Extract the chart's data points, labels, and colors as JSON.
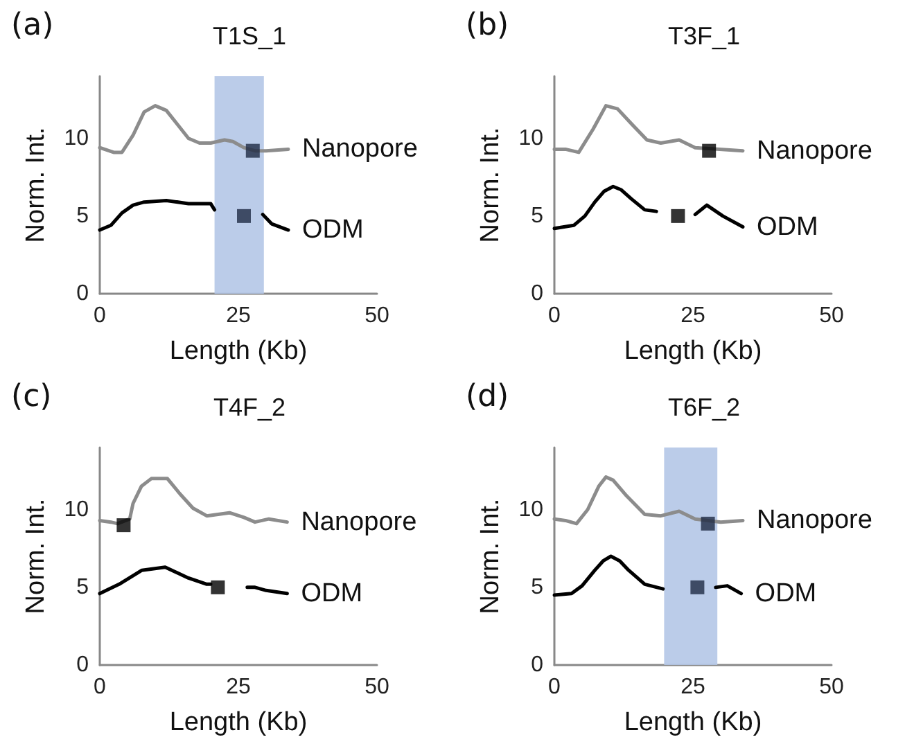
{
  "chart_data": [
    {
      "type": "line",
      "title": "T1S_1",
      "xlabel": "Length (Kb)",
      "ylabel": "Norm. Int.",
      "annotations": [
        "(a)"
      ],
      "xlim": [
        0,
        50
      ],
      "xticks": [
        0,
        25,
        50
      ],
      "ylim": [
        0,
        14
      ],
      "yticks": [
        0,
        5,
        10
      ],
      "bands": [
        {
          "axis": "x",
          "from": 20.7,
          "to": 29.6,
          "color": "#b4c7e7"
        }
      ],
      "series": [
        {
          "name": "Nanopore",
          "color": "#8c8c8c",
          "x": [
            0,
            2.5,
            4,
            6,
            8,
            10,
            12,
            14,
            16,
            18,
            20,
            22.5,
            24,
            26,
            28,
            30,
            34
          ],
          "values": [
            9.4,
            9.1,
            9.1,
            10.2,
            11.7,
            12.1,
            11.8,
            10.9,
            10.0,
            9.7,
            9.7,
            9.9,
            9.8,
            9.4,
            9.2,
            9.2,
            9.3
          ]
        },
        {
          "name": "ODM",
          "color": "#000000",
          "x": [
            0,
            2,
            4,
            6,
            8,
            12,
            16,
            20,
            20.7,
            25,
            29.4,
            31,
            34
          ],
          "values": [
            4.1,
            4.4,
            5.2,
            5.7,
            5.9,
            6.0,
            5.8,
            5.8,
            5.4,
            null,
            5.1,
            4.5,
            4.1
          ]
        },
        {
          "type": "scatter",
          "marker": "square",
          "color": "#1f2a44",
          "x": [
            27.6,
            26.0
          ],
          "values": [
            9.2,
            5.0
          ]
        }
      ]
    },
    {
      "type": "line",
      "title": "T3F_1",
      "xlabel": "Length (Kb)",
      "ylabel": "Norm. Int.",
      "annotations": [
        "(b)"
      ],
      "xlim": [
        0,
        50
      ],
      "xticks": [
        0,
        25,
        50
      ],
      "ylim": [
        0,
        14
      ],
      "yticks": [
        0,
        5,
        10
      ],
      "series": [
        {
          "name": "Nanopore",
          "color": "#8c8c8c",
          "x": [
            0,
            2,
            4.4,
            7,
            9.3,
            11.4,
            14,
            16.7,
            19.2,
            22.5,
            25.4,
            34
          ],
          "values": [
            9.3,
            9.3,
            9.1,
            10.6,
            12.1,
            11.9,
            10.9,
            9.9,
            9.7,
            9.9,
            9.4,
            9.2
          ]
        },
        {
          "name": "ODM",
          "color": "#000000",
          "x": [
            0,
            3.5,
            5.5,
            7.3,
            9,
            10.6,
            12,
            13.9,
            16.3,
            18.4,
            22,
            25.4,
            27.5,
            30.4,
            34
          ],
          "values": [
            4.2,
            4.4,
            5.0,
            5.9,
            6.6,
            6.9,
            6.7,
            6.1,
            5.4,
            5.3,
            null,
            5.1,
            5.7,
            5.0,
            4.3
          ]
        },
        {
          "type": "scatter",
          "marker": "square",
          "color": "#000000",
          "x": [
            27.9,
            22.3
          ],
          "values": [
            9.2,
            5.0
          ]
        }
      ]
    },
    {
      "type": "line",
      "title": "T4F_2",
      "xlabel": "Length (Kb)",
      "ylabel": "Norm. Int.",
      "annotations": [
        "(c)"
      ],
      "xlim": [
        0,
        50
      ],
      "xticks": [
        0,
        25,
        50
      ],
      "ylim": [
        0,
        14
      ],
      "yticks": [
        0,
        5,
        10
      ],
      "series": [
        {
          "name": "Nanopore",
          "color": "#8c8c8c",
          "x": [
            0,
            2,
            3.2,
            5.4,
            6,
            7.5,
            9.3,
            12.2,
            14.5,
            16.8,
            19.3,
            23.4,
            26,
            28,
            30.5,
            33.8
          ],
          "values": [
            9.3,
            9.2,
            9.1,
            9.4,
            10.4,
            11.5,
            12.0,
            12.0,
            11.0,
            10.1,
            9.6,
            9.8,
            9.5,
            9.2,
            9.4,
            9.2
          ]
        },
        {
          "name": "ODM",
          "color": "#000000",
          "x": [
            0,
            3.5,
            7.6,
            11.8,
            16,
            19.3,
            20,
            23,
            26.6,
            28,
            30,
            33.8
          ],
          "values": [
            4.6,
            5.2,
            6.1,
            6.3,
            5.6,
            5.2,
            5.2,
            null,
            5.0,
            5.0,
            4.8,
            4.6
          ]
        },
        {
          "type": "scatter",
          "marker": "square",
          "color": "#000000",
          "x": [
            4.3,
            21.3
          ],
          "values": [
            9.0,
            5.0
          ]
        }
      ]
    },
    {
      "type": "line",
      "title": "T6F_2",
      "xlabel": "Length (Kb)",
      "ylabel": "Norm. Int.",
      "annotations": [
        "(d)"
      ],
      "xlim": [
        0,
        50
      ],
      "xticks": [
        0,
        25,
        50
      ],
      "ylim": [
        0,
        14
      ],
      "yticks": [
        0,
        5,
        10
      ],
      "bands": [
        {
          "axis": "x",
          "from": 19.8,
          "to": 29.4,
          "color": "#b4c7e7"
        }
      ],
      "series": [
        {
          "name": "Nanopore",
          "color": "#8c8c8c",
          "x": [
            0,
            2,
            4,
            6,
            8,
            9.3,
            10.6,
            13,
            16.3,
            19.2,
            22.5,
            25.4,
            30,
            34
          ],
          "values": [
            9.4,
            9.3,
            9.1,
            10.0,
            11.5,
            12.1,
            11.9,
            10.9,
            9.7,
            9.6,
            9.9,
            9.4,
            9.2,
            9.3
          ]
        },
        {
          "name": "ODM",
          "color": "#000000",
          "x": [
            0,
            3.1,
            5,
            7.3,
            8.8,
            10.2,
            11.8,
            13.4,
            16.3,
            19.6,
            25,
            29.1,
            31.2,
            33.7
          ],
          "values": [
            4.5,
            4.6,
            5.1,
            6.1,
            6.7,
            7.0,
            6.7,
            6.1,
            5.2,
            4.9,
            null,
            5.0,
            5.1,
            4.6
          ]
        },
        {
          "type": "scatter",
          "marker": "square",
          "color": "#1f2a44",
          "x": [
            27.7,
            25.8
          ],
          "values": [
            9.1,
            5.0
          ]
        }
      ]
    }
  ]
}
